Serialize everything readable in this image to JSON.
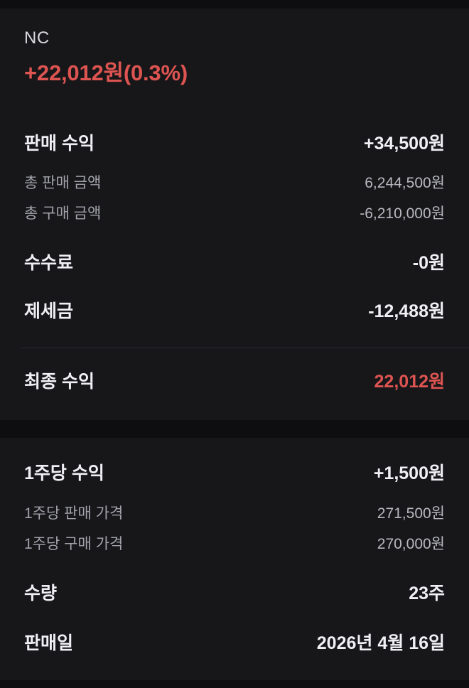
{
  "header": {
    "stock_name": "NC",
    "total_profit_headline": "+22,012원(0.3%)"
  },
  "colors": {
    "background": "#17171a",
    "band": "#0e0e10",
    "accent_red": "#dd5451",
    "text_primary": "#f0f0f4",
    "text_secondary": "#a2a3aa"
  },
  "profit_section": {
    "sale_profit": {
      "label": "판매 수익",
      "value": "+34,500원"
    },
    "total_sale_amount": {
      "label": "총 판매 금액",
      "value": "6,244,500원"
    },
    "total_purchase_amount": {
      "label": "총 구매 금액",
      "value": "-6,210,000원"
    },
    "fee": {
      "label": "수수료",
      "value": "-0원"
    },
    "tax": {
      "label": "제세금",
      "value": "-12,488원"
    },
    "final_profit": {
      "label": "최종 수익",
      "value": "22,012원"
    }
  },
  "per_share_section": {
    "per_share_profit": {
      "label": "1주당 수익",
      "value": "+1,500원"
    },
    "per_share_sale_price": {
      "label": "1주당 판매 가격",
      "value": "271,500원"
    },
    "per_share_purchase_price": {
      "label": "1주당 구매 가격",
      "value": "270,000원"
    },
    "quantity": {
      "label": "수량",
      "value": "23주"
    },
    "sale_date": {
      "label": "판매일",
      "value": "2026년 4월 16일"
    }
  }
}
